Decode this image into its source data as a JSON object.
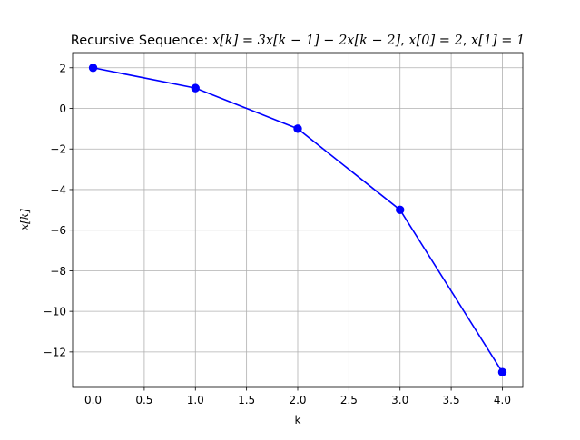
{
  "chart_data": {
    "type": "line",
    "title": {
      "prefix": "Recursive Sequence: ",
      "recurrence": "x[k] = 3x[k − 1] − 2x[k − 2]",
      "init0": "x[0] = 2",
      "init1": "x[1] = 1"
    },
    "xlabel": "k",
    "ylabel": "x[k]",
    "x": [
      0,
      1,
      2,
      3,
      4
    ],
    "series": [
      {
        "values": [
          2,
          1,
          -1,
          -5,
          -13
        ],
        "color": "#0000ff",
        "marker": "circle"
      }
    ],
    "xlim": [
      -0.2,
      4.2
    ],
    "ylim": [
      -13.75,
      2.75
    ],
    "xticks": [
      0.0,
      0.5,
      1.0,
      1.5,
      2.0,
      2.5,
      3.0,
      3.5,
      4.0
    ],
    "xtick_labels": [
      "0.0",
      "0.5",
      "1.0",
      "1.5",
      "2.0",
      "2.5",
      "3.0",
      "3.5",
      "4.0"
    ],
    "yticks": [
      2,
      0,
      -2,
      -4,
      -6,
      -8,
      -10,
      -12
    ],
    "ytick_labels": [
      "2",
      "0",
      "−2",
      "−4",
      "−6",
      "−8",
      "−10",
      "−12"
    ],
    "grid": true
  }
}
